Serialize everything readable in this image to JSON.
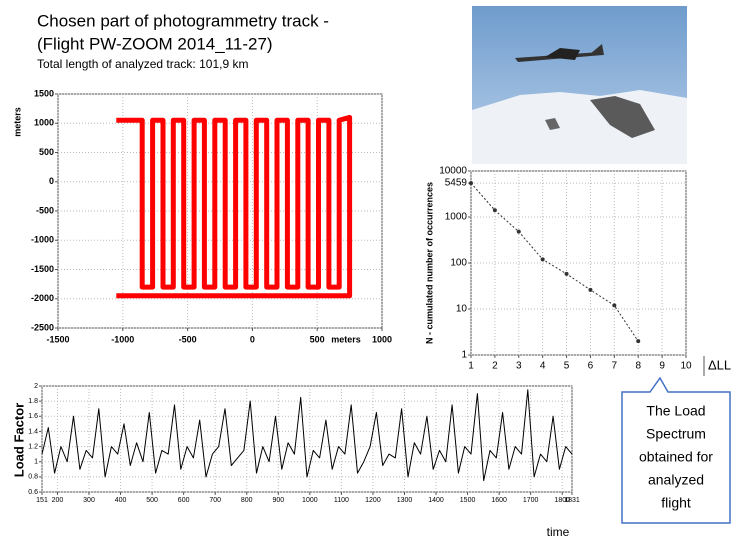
{
  "title_lines": [
    "Chosen part of photogrammetry track -",
    "(Flight PW-ZOOM 2014_11-27)"
  ],
  "subtitle": "Total length of analyzed track: 101,9 km",
  "delta_label": "ΔLL",
  "callout_lines": [
    "The Load",
    "Spectrum",
    "obtained for",
    "analyzed",
    "flight"
  ],
  "chart_data": [
    {
      "type": "line",
      "xlabel": "meters",
      "ylabel": "meters",
      "xlim": [
        -1500,
        1000
      ],
      "ylim": [
        -2500,
        1500
      ],
      "xticks": [
        -1500,
        -1000,
        -500,
        0,
        500,
        1000
      ],
      "yticks": [
        -2500,
        -2000,
        -1500,
        -1000,
        -500,
        0,
        500,
        1000,
        1500
      ],
      "grid": true,
      "log": false,
      "series": [
        {
          "color": "#ff0000",
          "x": [
            -1050,
            -850,
            -850,
            -770,
            -770,
            -690,
            -690,
            -610,
            -610,
            -530,
            -530,
            -450,
            -450,
            -370,
            -370,
            -290,
            -290,
            -210,
            -210,
            -130,
            -130,
            -50,
            -50,
            30,
            30,
            110,
            110,
            190,
            190,
            270,
            270,
            350,
            350,
            430,
            430,
            510,
            510,
            590,
            590,
            670,
            670,
            750,
            750,
            -1050
          ],
          "values": [
            1050,
            1050,
            -1800,
            -1800,
            1050,
            1050,
            -1800,
            -1800,
            1050,
            1050,
            -1800,
            -1800,
            1050,
            1050,
            -1800,
            -1800,
            1050,
            1050,
            -1800,
            -1800,
            1050,
            1050,
            -1800,
            -1800,
            1050,
            1050,
            -1800,
            -1800,
            1050,
            1050,
            -1800,
            -1800,
            1050,
            1050,
            -1800,
            -1800,
            1050,
            1050,
            -1800,
            -1800,
            1050,
            1100,
            -1950,
            -1950
          ]
        }
      ]
    },
    {
      "type": "line",
      "ylabel": "N - cumulated number of occurrences",
      "xlim": [
        1,
        10
      ],
      "ylim": [
        1,
        10000
      ],
      "xticks": [
        1,
        2,
        3,
        4,
        5,
        6,
        7,
        8,
        9,
        10
      ],
      "yticks": [
        1,
        10,
        100,
        1000,
        5459,
        10000
      ],
      "grid": true,
      "log": true,
      "series": [
        {
          "color": "#333333",
          "dashed": true,
          "markers": true,
          "x": [
            1,
            2,
            3,
            4,
            5,
            6,
            7,
            8
          ],
          "values": [
            5459,
            1400,
            480,
            120,
            58,
            26,
            12,
            2
          ]
        }
      ]
    },
    {
      "type": "line",
      "xlabel": "time",
      "ylabel": "Load Factor",
      "xlim": [
        151,
        1831
      ],
      "ylim": [
        0.6,
        2
      ],
      "xticks": [
        151,
        200,
        300,
        400,
        500,
        600,
        700,
        800,
        900,
        1000,
        1100,
        1200,
        1300,
        1400,
        1500,
        1600,
        1700,
        1800,
        1831
      ],
      "yticks": [
        0.6,
        0.8,
        1,
        1.2,
        1.4,
        1.6,
        1.8,
        2
      ],
      "grid": true,
      "log": false,
      "series": [
        {
          "color": "#000000",
          "x": [
            151,
            171,
            191,
            211,
            231,
            251,
            271,
            291,
            311,
            331,
            351,
            371,
            391,
            411,
            431,
            451,
            471,
            491,
            511,
            531,
            551,
            571,
            591,
            611,
            631,
            651,
            671,
            691,
            711,
            731,
            751,
            771,
            791,
            811,
            831,
            851,
            871,
            891,
            911,
            931,
            951,
            971,
            991,
            1011,
            1031,
            1051,
            1071,
            1091,
            1111,
            1131,
            1151,
            1171,
            1191,
            1211,
            1231,
            1251,
            1271,
            1291,
            1311,
            1331,
            1351,
            1371,
            1391,
            1411,
            1431,
            1451,
            1471,
            1491,
            1511,
            1531,
            1551,
            1571,
            1591,
            1611,
            1631,
            1651,
            1671,
            1691,
            1711,
            1731,
            1751,
            1771,
            1791,
            1811,
            1831
          ],
          "values": [
            1.1,
            1.45,
            0.85,
            1.2,
            1.0,
            1.6,
            0.9,
            1.15,
            1.05,
            1.7,
            0.8,
            1.2,
            1.1,
            1.5,
            0.95,
            1.25,
            1.0,
            1.65,
            0.85,
            1.15,
            1.1,
            1.75,
            0.9,
            1.2,
            1.05,
            1.55,
            0.8,
            1.1,
            1.2,
            1.7,
            0.95,
            1.05,
            1.15,
            1.8,
            0.85,
            1.2,
            1.0,
            1.6,
            0.9,
            1.25,
            1.1,
            1.85,
            0.8,
            1.15,
            1.05,
            1.55,
            0.9,
            1.2,
            1.1,
            1.75,
            0.85,
            1.0,
            1.2,
            1.65,
            0.95,
            1.1,
            1.05,
            1.7,
            0.8,
            1.25,
            1.1,
            1.6,
            0.9,
            1.15,
            1.0,
            1.75,
            0.85,
            1.2,
            1.1,
            1.9,
            0.75,
            1.15,
            1.05,
            1.65,
            0.9,
            1.2,
            1.1,
            1.95,
            0.8,
            1.1,
            1.0,
            1.6,
            0.9,
            1.2,
            1.1
          ]
        }
      ]
    }
  ]
}
